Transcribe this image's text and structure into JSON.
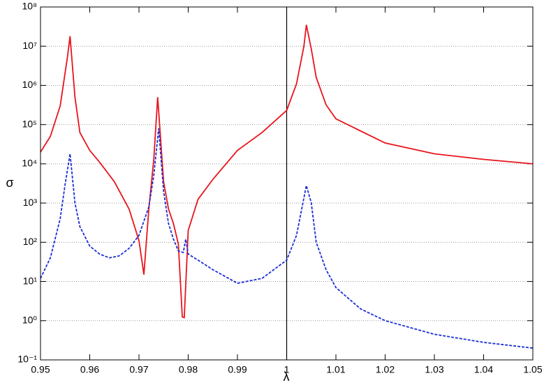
{
  "chart_data": {
    "type": "line",
    "x_label": "λ",
    "y_label": "σ",
    "xlim": [
      0.95,
      1.05
    ],
    "xticks": [
      0.95,
      0.96,
      0.97,
      0.98,
      0.99,
      1,
      1.01,
      1.02,
      1.03,
      1.04,
      1.05
    ],
    "ylim": [
      0.1,
      100000000
    ],
    "y_log": true,
    "grid": true,
    "yticks": [
      {
        "value": 0.1,
        "label": "10⁻¹"
      },
      {
        "value": 1,
        "label": "10⁰"
      },
      {
        "value": 10,
        "label": "10¹"
      },
      {
        "value": 100,
        "label": "10²"
      },
      {
        "value": 1000,
        "label": "10³"
      },
      {
        "value": 10000,
        "label": "10⁴"
      },
      {
        "value": 100000,
        "label": "10⁵"
      },
      {
        "value": 1000000,
        "label": "10⁶"
      },
      {
        "value": 10000000,
        "label": "10⁷"
      },
      {
        "value": 100000000,
        "label": "10⁸"
      }
    ],
    "vlines": [
      1
    ],
    "series": [
      {
        "color": "#e8141b",
        "dash": false,
        "x": [
          0.95,
          0.952,
          0.954,
          0.9555,
          0.956,
          0.957,
          0.958,
          0.96,
          0.962,
          0.965,
          0.968,
          0.97,
          0.971,
          0.972,
          0.973,
          0.9738,
          0.975,
          0.976,
          0.977,
          0.978,
          0.9788,
          0.9792,
          0.98,
          0.982,
          0.985,
          0.99,
          0.995,
          1,
          1.002,
          1.0035,
          1.004,
          1.005,
          1.006,
          1.008,
          1.01,
          1.02,
          1.03,
          1.04,
          1.05
        ],
        "values": [
          20000,
          50000,
          300000,
          5600000,
          18000000,
          500000,
          63000,
          22000,
          11000,
          3500,
          700,
          110,
          15,
          700,
          12600,
          500000,
          3500,
          700,
          300,
          90,
          1.25,
          1.2,
          200,
          1250,
          4000,
          22000,
          63000,
          230000,
          1100000,
          10000000,
          35000000,
          8500000,
          1600000,
          320000,
          140000,
          34000,
          18000,
          13000,
          10000
        ]
      },
      {
        "color": "#1a2ed6",
        "dash": true,
        "x": [
          0.95,
          0.952,
          0.954,
          0.955,
          0.956,
          0.957,
          0.958,
          0.96,
          0.962,
          0.964,
          0.966,
          0.968,
          0.97,
          0.972,
          0.973,
          0.974,
          0.975,
          0.976,
          0.977,
          0.978,
          0.979,
          0.9795,
          0.98,
          0.982,
          0.985,
          0.99,
          0.995,
          1,
          1.002,
          1.004,
          1.005,
          1.006,
          1.008,
          1.01,
          1.015,
          1.02,
          1.03,
          1.04,
          1.05
        ],
        "values": [
          12,
          40,
          400,
          3000,
          18000,
          1000,
          250,
          80,
          50,
          40,
          45,
          70,
          150,
          800,
          5000,
          80000,
          2000,
          300,
          120,
          60,
          55,
          120,
          50,
          35,
          20,
          9,
          12,
          35,
          150,
          2800,
          1000,
          100,
          20,
          7,
          2,
          1,
          0.45,
          0.28,
          0.2
        ]
      }
    ]
  }
}
